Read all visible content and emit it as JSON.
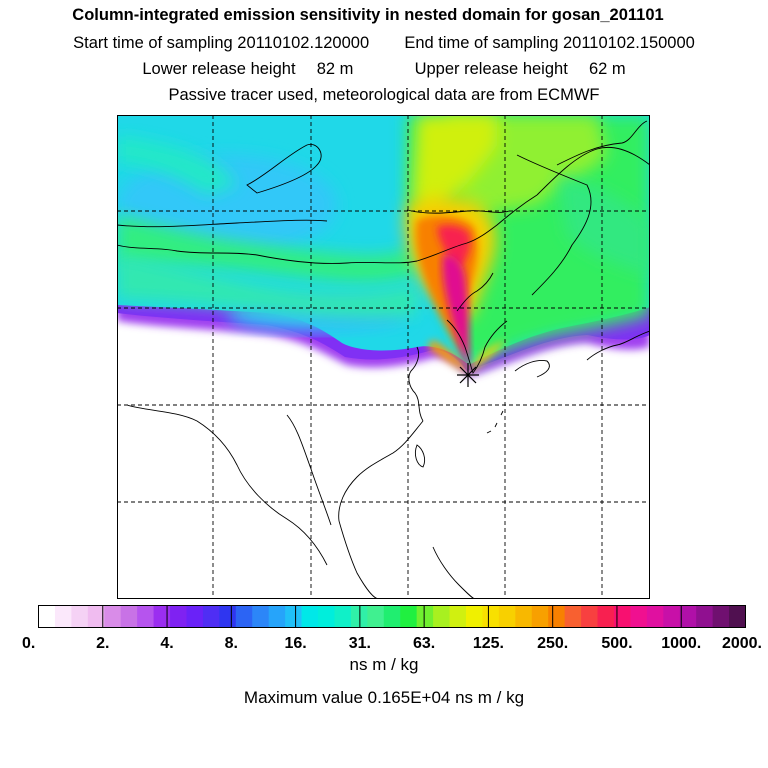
{
  "header": {
    "title": "Column-integrated emission sensitivity in nested domain for gosan_201101",
    "start_label": "Start time of sampling",
    "start_value": "20110102.120000",
    "end_label": "End time of sampling",
    "end_value": "20110102.150000",
    "lower_label": "Lower release height",
    "lower_value": "82 m",
    "upper_label": "Upper release height",
    "upper_value": "62 m",
    "tracer_line": "Passive tracer used, meteorological data are from ECMWF"
  },
  "colorbar": {
    "colors": [
      "#ffffff",
      "#fbe8fb",
      "#f5d2f5",
      "#f0bcf0",
      "#d98ce8",
      "#c872e6",
      "#b654ee",
      "#9b2ef0",
      "#7f22f2",
      "#6a22f8",
      "#4f2ef4",
      "#2f36f0",
      "#2c64f4",
      "#2c86f8",
      "#26a4fa",
      "#20c0f8",
      "#00e8e8",
      "#00eedc",
      "#10f0c8",
      "#30f0a8",
      "#40f090",
      "#20ee70",
      "#20f040",
      "#70f030",
      "#a8f020",
      "#d0f010",
      "#f0f000",
      "#f8e000",
      "#f8d000",
      "#f8b800",
      "#f8a000",
      "#f88000",
      "#f86030",
      "#f84040",
      "#f82050",
      "#f81070",
      "#f01090",
      "#e010a0",
      "#c810a8",
      "#b010a8",
      "#901090",
      "#701070",
      "#501050"
    ],
    "tick_labels": [
      "0.",
      "2.",
      "4.",
      "8.",
      "16.",
      "31.",
      "63.",
      "125.",
      "250.",
      "500.",
      "1000.",
      "2000."
    ]
  },
  "unit": "ns m / kg",
  "max_value_line": "Maximum value  0.165E+04 ns m / kg"
}
